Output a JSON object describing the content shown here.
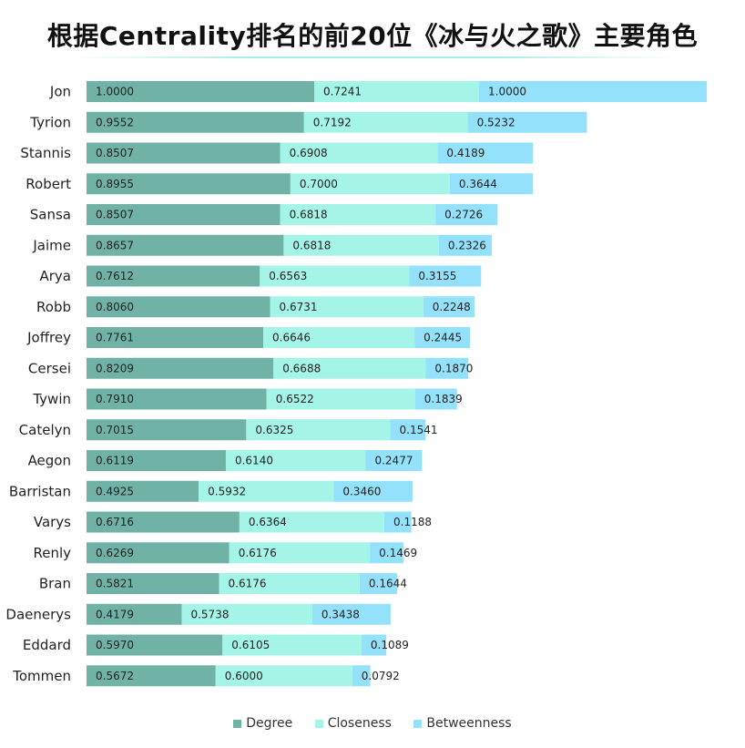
{
  "title": "根据Centrality排名的前20位《冰与火之歌》主要角色",
  "colors": {
    "Degree": "#70b3a6",
    "Closeness": "#a5f4e8",
    "Betweenness": "#93e1fb"
  },
  "chart_data": {
    "type": "bar",
    "orientation": "horizontal",
    "stacked": true,
    "title": "根据Centrality排名的前20位《冰与火之歌》主要角色",
    "xlabel": "",
    "ylabel": "",
    "legend_position": "bottom",
    "grid": false,
    "categories": [
      "Jon",
      "Tyrion",
      "Stannis",
      "Robert",
      "Sansa",
      "Jaime",
      "Arya",
      "Robb",
      "Joffrey",
      "Cersei",
      "Tywin",
      "Catelyn",
      "Aegon",
      "Barristan",
      "Varys",
      "Renly",
      "Bran",
      "Daenerys",
      "Eddard",
      "Tommen"
    ],
    "series": [
      {
        "name": "Degree",
        "values": [
          1.0,
          0.9552,
          0.8507,
          0.8955,
          0.8507,
          0.8657,
          0.7612,
          0.806,
          0.7761,
          0.8209,
          0.791,
          0.7015,
          0.6119,
          0.4925,
          0.6716,
          0.6269,
          0.5821,
          0.4179,
          0.597,
          0.5672
        ],
        "labels": [
          "1.0000",
          "0.9552",
          "0.8507",
          "0.8955",
          "0.8507",
          "0.8657",
          "0.7612",
          "0.8060",
          "0.7761",
          "0.8209",
          "0.7910",
          "0.7015",
          "0.6119",
          "0.4925",
          "0.6716",
          "0.6269",
          "0.5821",
          "0.4179",
          "0.5970",
          "0.5672"
        ]
      },
      {
        "name": "Closeness",
        "values": [
          0.7241,
          0.7192,
          0.6908,
          0.7,
          0.6818,
          0.6818,
          0.6563,
          0.6731,
          0.6646,
          0.6688,
          0.6522,
          0.6325,
          0.614,
          0.5932,
          0.6364,
          0.6176,
          0.6176,
          0.5738,
          0.6105,
          0.6
        ],
        "labels": [
          "0.7241",
          "0.7192",
          "0.6908",
          "0.7000",
          "0.6818",
          "0.6818",
          "0.6563",
          "0.6731",
          "0.6646",
          "0.6688",
          "0.6522",
          "0.6325",
          "0.6140",
          "0.5932",
          "0.6364",
          "0.6176",
          "0.6176",
          "0.5738",
          "0.6105",
          "0.6000"
        ]
      },
      {
        "name": "Betweenness",
        "values": [
          1.0,
          0.5232,
          0.4189,
          0.3644,
          0.2726,
          0.2326,
          0.3155,
          0.2248,
          0.2445,
          0.187,
          0.1839,
          0.1541,
          0.2477,
          0.346,
          0.1188,
          0.1469,
          0.1644,
          0.3438,
          0.1089,
          0.0792
        ],
        "labels": [
          "1.0000",
          "0.5232",
          "0.4189",
          "0.3644",
          "0.2726",
          "0.2326",
          "0.3155",
          "0.2248",
          "0.2445",
          "0.1870",
          "0.1839",
          "0.1541",
          "0.2477",
          "0.3460",
          "0.1188",
          "0.1469",
          "0.1644",
          "0.3438",
          "0.1089",
          "0.0792"
        ]
      }
    ]
  }
}
